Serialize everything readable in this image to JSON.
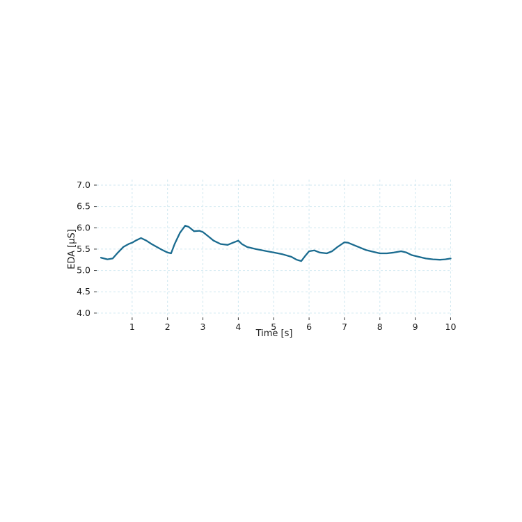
{
  "page": {
    "background": "#ffffff"
  },
  "chart_data": {
    "type": "line",
    "title": "",
    "xlabel": "Time [s]",
    "ylabel": "EDA [μS]",
    "xlim": [
      0,
      10.05
    ],
    "ylim": [
      3.9,
      7.13
    ],
    "xticks": [
      1,
      2,
      3,
      4,
      5,
      6,
      7,
      8,
      9,
      10
    ],
    "xtick_labels": [
      "1",
      "2",
      "3",
      "4",
      "5",
      "6",
      "7",
      "8",
      "9",
      "10"
    ],
    "yticks": [
      4.0,
      4.5,
      5.0,
      5.5,
      6.0,
      6.5,
      7.0
    ],
    "ytick_labels": [
      "4.0",
      "4.5",
      "5.0",
      "5.5",
      "6.0",
      "6.5",
      "7.0"
    ],
    "grid": {
      "visible": true,
      "style": "dashed",
      "color": "#cfe7f0"
    },
    "legend": {
      "visible": false
    },
    "series": [
      {
        "name": "EDA",
        "color": "#1a6b8f",
        "x": [
          0.12,
          0.3,
          0.45,
          0.6,
          0.75,
          0.9,
          1.0,
          1.1,
          1.25,
          1.4,
          1.55,
          1.7,
          1.85,
          2.0,
          2.1,
          2.2,
          2.35,
          2.5,
          2.6,
          2.75,
          2.9,
          3.0,
          3.15,
          3.3,
          3.5,
          3.7,
          3.85,
          4.0,
          4.1,
          4.25,
          4.5,
          4.75,
          5.0,
          5.25,
          5.5,
          5.65,
          5.78,
          5.9,
          6.0,
          6.15,
          6.3,
          6.5,
          6.65,
          6.8,
          7.0,
          7.1,
          7.25,
          7.4,
          7.6,
          7.8,
          8.0,
          8.2,
          8.4,
          8.6,
          8.75,
          8.9,
          9.1,
          9.3,
          9.5,
          9.7,
          9.85,
          10.0
        ],
        "y": [
          5.3,
          5.26,
          5.28,
          5.42,
          5.55,
          5.62,
          5.65,
          5.7,
          5.76,
          5.7,
          5.62,
          5.55,
          5.48,
          5.42,
          5.4,
          5.62,
          5.88,
          6.05,
          6.02,
          5.92,
          5.93,
          5.9,
          5.8,
          5.7,
          5.62,
          5.6,
          5.65,
          5.7,
          5.62,
          5.55,
          5.5,
          5.46,
          5.42,
          5.38,
          5.32,
          5.25,
          5.22,
          5.35,
          5.45,
          5.47,
          5.42,
          5.4,
          5.45,
          5.55,
          5.66,
          5.65,
          5.6,
          5.55,
          5.48,
          5.44,
          5.4,
          5.4,
          5.42,
          5.45,
          5.42,
          5.36,
          5.32,
          5.28,
          5.26,
          5.25,
          5.26,
          5.28
        ]
      }
    ]
  }
}
